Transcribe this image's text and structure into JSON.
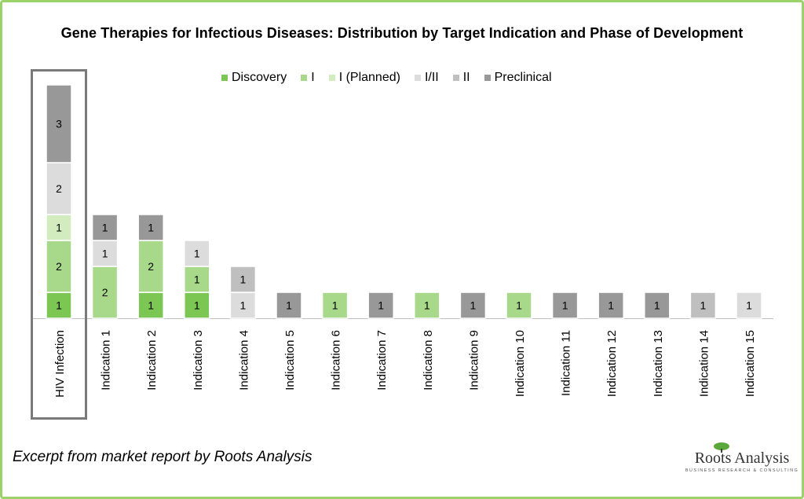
{
  "chart_data": {
    "type": "bar",
    "stacked": true,
    "title": "Gene Therapies for Infectious Diseases: Distribution by Target Indication and Phase of Development",
    "categories": [
      "HIV Infection",
      "Indication 1",
      "Indication 2",
      "Indication 3",
      "Indication 4",
      "Indication 5",
      "Indication 6",
      "Indication 7",
      "Indication 8",
      "Indication 9",
      "Indication 10",
      "Indication 11",
      "Indication 12",
      "Indication 13",
      "Indication 14",
      "Indication 15"
    ],
    "series": [
      {
        "name": "Discovery",
        "color": "#7cc653",
        "values": [
          1,
          0,
          1,
          1,
          0,
          0,
          0,
          0,
          0,
          0,
          0,
          0,
          0,
          0,
          0,
          0
        ]
      },
      {
        "name": "I",
        "color": "#a8d98b",
        "values": [
          2,
          2,
          2,
          1,
          0,
          0,
          1,
          0,
          1,
          0,
          1,
          0,
          0,
          0,
          0,
          0
        ]
      },
      {
        "name": "I (Planned)",
        "color": "#d2ecc0",
        "values": [
          1,
          0,
          0,
          0,
          0,
          0,
          0,
          0,
          0,
          0,
          0,
          0,
          0,
          0,
          0,
          0
        ]
      },
      {
        "name": "I/II",
        "color": "#dcdcdc",
        "values": [
          2,
          1,
          0,
          1,
          1,
          0,
          0,
          0,
          0,
          0,
          0,
          0,
          0,
          0,
          0,
          1
        ]
      },
      {
        "name": "II",
        "color": "#bfbfbf",
        "values": [
          0,
          0,
          0,
          0,
          1,
          0,
          0,
          0,
          0,
          0,
          0,
          0,
          0,
          0,
          1,
          0
        ]
      },
      {
        "name": "Preclinical",
        "color": "#989898",
        "values": [
          3,
          1,
          1,
          0,
          0,
          1,
          0,
          1,
          0,
          1,
          0,
          1,
          1,
          1,
          0,
          0
        ]
      }
    ],
    "legend_position": "top",
    "grid": false,
    "data_labels": true
  },
  "footer": {
    "note": "Excerpt from market report by Roots Analysis"
  },
  "logo": {
    "name": "Roots Analysis",
    "tagline": "BUSINESS RESEARCH & CONSULTING"
  }
}
